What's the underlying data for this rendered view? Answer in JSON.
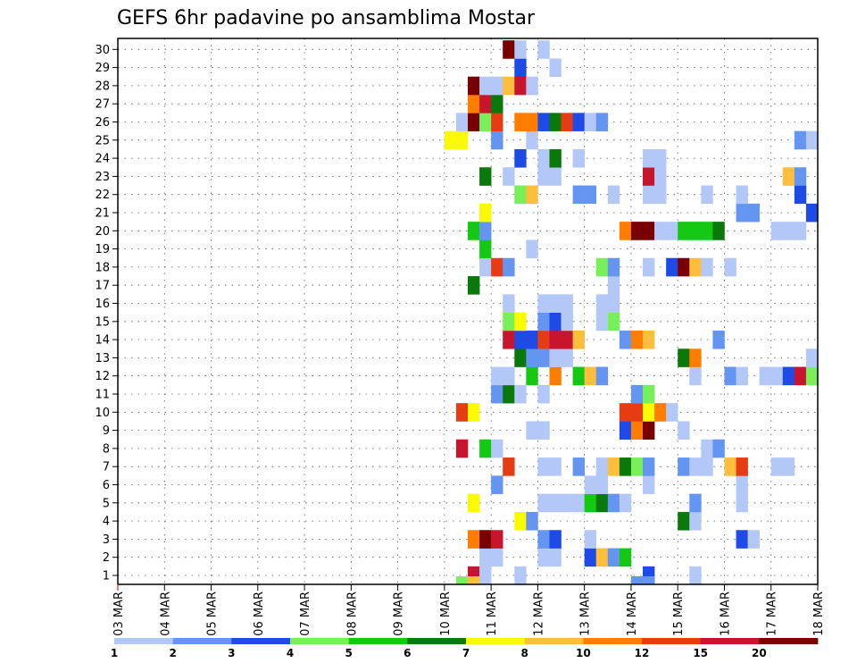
{
  "chart_data": {
    "type": "heatmap",
    "title": "GEFS 6hr padavine po ansamblima Mostar",
    "y_ticks": [
      "1",
      "2",
      "3",
      "4",
      "5",
      "6",
      "7",
      "8",
      "9",
      "10",
      "11",
      "12",
      "13",
      "14",
      "15",
      "16",
      "17",
      "18",
      "19",
      "20",
      "21",
      "22",
      "23",
      "24",
      "25",
      "26",
      "27",
      "28",
      "29",
      "30"
    ],
    "x_ticks": [
      "03 MAR",
      "04 MAR",
      "05 MAR",
      "06 MAR",
      "07 MAR",
      "08 MAR",
      "09 MAR",
      "10 MAR",
      "11 MAR",
      "12 MAR",
      "13 MAR",
      "14 MAR",
      "15 MAR",
      "16 MAR",
      "17 MAR",
      "18 MAR"
    ],
    "xlim": [
      0,
      60
    ],
    "ylim": [
      0,
      30
    ],
    "grid": "dotted",
    "colorbar": {
      "levels": [
        "1",
        "2",
        "3",
        "4",
        "5",
        "6",
        "7",
        "8",
        "10",
        "12",
        "15",
        "20"
      ],
      "colors": [
        "#b4c8f8",
        "#6495f0",
        "#1e4be6",
        "#78f05a",
        "#14c814",
        "#0a780a",
        "#fafa00",
        "#ffbe3c",
        "#ff7d00",
        "#e63c14",
        "#c8142d",
        "#780000"
      ]
    },
    "cells": [
      {
        "m": 1,
        "t": 31,
        "c": 10
      },
      {
        "m": 1,
        "t": 32,
        "c": 0
      },
      {
        "m": 1,
        "t": 35,
        "c": 0
      },
      {
        "m": 1,
        "t": 46,
        "c": 2
      },
      {
        "m": 1,
        "t": 50,
        "c": 0
      },
      {
        "m": 2,
        "t": 32,
        "c": 0
      },
      {
        "m": 2,
        "t": 33,
        "c": 0
      },
      {
        "m": 2,
        "t": 37,
        "c": 0
      },
      {
        "m": 2,
        "t": 38,
        "c": 0
      },
      {
        "m": 2,
        "t": 41,
        "c": 2
      },
      {
        "m": 2,
        "t": 42,
        "c": 7
      },
      {
        "m": 2,
        "t": 43,
        "c": 1
      },
      {
        "m": 2,
        "t": 44,
        "c": 4
      },
      {
        "m": 3,
        "t": 31,
        "c": 8
      },
      {
        "m": 3,
        "t": 32,
        "c": 11
      },
      {
        "m": 3,
        "t": 33,
        "c": 10
      },
      {
        "m": 3,
        "t": 37,
        "c": 1
      },
      {
        "m": 3,
        "t": 38,
        "c": 2
      },
      {
        "m": 3,
        "t": 41,
        "c": 0
      },
      {
        "m": 3,
        "t": 54,
        "c": 2
      },
      {
        "m": 3,
        "t": 55,
        "c": 0
      },
      {
        "m": 4,
        "t": 35,
        "c": 6
      },
      {
        "m": 4,
        "t": 36,
        "c": 1
      },
      {
        "m": 4,
        "t": 49,
        "c": 5
      },
      {
        "m": 4,
        "t": 50,
        "c": 0
      },
      {
        "m": 5,
        "t": 31,
        "c": 6
      },
      {
        "m": 5,
        "t": 37,
        "c": 0
      },
      {
        "m": 5,
        "t": 38,
        "c": 0
      },
      {
        "m": 5,
        "t": 39,
        "c": 0
      },
      {
        "m": 5,
        "t": 40,
        "c": 0
      },
      {
        "m": 5,
        "t": 41,
        "c": 4
      },
      {
        "m": 5,
        "t": 42,
        "c": 5
      },
      {
        "m": 5,
        "t": 43,
        "c": 1
      },
      {
        "m": 5,
        "t": 44,
        "c": 0
      },
      {
        "m": 5,
        "t": 50,
        "c": 1
      },
      {
        "m": 5,
        "t": 54,
        "c": 0
      },
      {
        "m": 6,
        "t": 33,
        "c": 1
      },
      {
        "m": 6,
        "t": 41,
        "c": 0
      },
      {
        "m": 6,
        "t": 42,
        "c": 0
      },
      {
        "m": 6,
        "t": 46,
        "c": 0
      },
      {
        "m": 6,
        "t": 54,
        "c": 0
      },
      {
        "m": 7,
        "t": 34,
        "c": 9
      },
      {
        "m": 7,
        "t": 37,
        "c": 0
      },
      {
        "m": 7,
        "t": 38,
        "c": 0
      },
      {
        "m": 7,
        "t": 40,
        "c": 1
      },
      {
        "m": 7,
        "t": 42,
        "c": 0
      },
      {
        "m": 7,
        "t": 43,
        "c": 7
      },
      {
        "m": 7,
        "t": 44,
        "c": 5
      },
      {
        "m": 7,
        "t": 45,
        "c": 3
      },
      {
        "m": 7,
        "t": 46,
        "c": 1
      },
      {
        "m": 7,
        "t": 49,
        "c": 1
      },
      {
        "m": 7,
        "t": 50,
        "c": 0
      },
      {
        "m": 7,
        "t": 51,
        "c": 0
      },
      {
        "m": 7,
        "t": 53,
        "c": 7
      },
      {
        "m": 7,
        "t": 54,
        "c": 9
      },
      {
        "m": 7,
        "t": 57,
        "c": 0
      },
      {
        "m": 7,
        "t": 58,
        "c": 0
      },
      {
        "m": 8,
        "t": 30,
        "c": 10
      },
      {
        "m": 8,
        "t": 32,
        "c": 4
      },
      {
        "m": 8,
        "t": 33,
        "c": 0
      },
      {
        "m": 8,
        "t": 51,
        "c": 0
      },
      {
        "m": 8,
        "t": 52,
        "c": 1
      },
      {
        "m": 9,
        "t": 36,
        "c": 0
      },
      {
        "m": 9,
        "t": 37,
        "c": 0
      },
      {
        "m": 9,
        "t": 44,
        "c": 2
      },
      {
        "m": 9,
        "t": 45,
        "c": 8
      },
      {
        "m": 9,
        "t": 46,
        "c": 11
      },
      {
        "m": 9,
        "t": 49,
        "c": 0
      },
      {
        "m": 10,
        "t": 30,
        "c": 9
      },
      {
        "m": 10,
        "t": 31,
        "c": 6
      },
      {
        "m": 10,
        "t": 44,
        "c": 9
      },
      {
        "m": 10,
        "t": 45,
        "c": 9
      },
      {
        "m": 10,
        "t": 46,
        "c": 6
      },
      {
        "m": 10,
        "t": 47,
        "c": 8
      },
      {
        "m": 10,
        "t": 48,
        "c": 0
      },
      {
        "m": 11,
        "t": 33,
        "c": 1
      },
      {
        "m": 11,
        "t": 34,
        "c": 5
      },
      {
        "m": 11,
        "t": 35,
        "c": 0
      },
      {
        "m": 11,
        "t": 37,
        "c": 0
      },
      {
        "m": 11,
        "t": 45,
        "c": 1
      },
      {
        "m": 11,
        "t": 46,
        "c": 3
      },
      {
        "m": 12,
        "t": 33,
        "c": 0
      },
      {
        "m": 12,
        "t": 34,
        "c": 0
      },
      {
        "m": 12,
        "t": 36,
        "c": 4
      },
      {
        "m": 12,
        "t": 38,
        "c": 8
      },
      {
        "m": 12,
        "t": 40,
        "c": 4
      },
      {
        "m": 12,
        "t": 41,
        "c": 7
      },
      {
        "m": 12,
        "t": 42,
        "c": 1
      },
      {
        "m": 12,
        "t": 50,
        "c": 0
      },
      {
        "m": 12,
        "t": 53,
        "c": 1
      },
      {
        "m": 12,
        "t": 54,
        "c": 0
      },
      {
        "m": 12,
        "t": 56,
        "c": 0
      },
      {
        "m": 12,
        "t": 57,
        "c": 0
      },
      {
        "m": 12,
        "t": 58,
        "c": 2
      },
      {
        "m": 12,
        "t": 59,
        "c": 10
      },
      {
        "m": 12,
        "t": 60,
        "c": 3
      },
      {
        "m": 13,
        "t": 35,
        "c": 5
      },
      {
        "m": 13,
        "t": 36,
        "c": 1
      },
      {
        "m": 13,
        "t": 37,
        "c": 1
      },
      {
        "m": 13,
        "t": 38,
        "c": 0
      },
      {
        "m": 13,
        "t": 39,
        "c": 0
      },
      {
        "m": 13,
        "t": 49,
        "c": 5
      },
      {
        "m": 13,
        "t": 50,
        "c": 8
      },
      {
        "m": 13,
        "t": 60,
        "c": 0
      },
      {
        "m": 14,
        "t": 34,
        "c": 10
      },
      {
        "m": 14,
        "t": 35,
        "c": 2
      },
      {
        "m": 14,
        "t": 36,
        "c": 2
      },
      {
        "m": 14,
        "t": 37,
        "c": 9
      },
      {
        "m": 14,
        "t": 38,
        "c": 10
      },
      {
        "m": 14,
        "t": 39,
        "c": 10
      },
      {
        "m": 14,
        "t": 40,
        "c": 7
      },
      {
        "m": 14,
        "t": 44,
        "c": 1
      },
      {
        "m": 14,
        "t": 45,
        "c": 8
      },
      {
        "m": 14,
        "t": 46,
        "c": 7
      },
      {
        "m": 14,
        "t": 52,
        "c": 1
      },
      {
        "m": 15,
        "t": 34,
        "c": 3
      },
      {
        "m": 15,
        "t": 35,
        "c": 6
      },
      {
        "m": 15,
        "t": 37,
        "c": 1
      },
      {
        "m": 15,
        "t": 38,
        "c": 2
      },
      {
        "m": 15,
        "t": 39,
        "c": 0
      },
      {
        "m": 15,
        "t": 42,
        "c": 0
      },
      {
        "m": 15,
        "t": 43,
        "c": 3
      },
      {
        "m": 16,
        "t": 34,
        "c": 0
      },
      {
        "m": 16,
        "t": 37,
        "c": 0
      },
      {
        "m": 16,
        "t": 38,
        "c": 0
      },
      {
        "m": 16,
        "t": 39,
        "c": 0
      },
      {
        "m": 16,
        "t": 42,
        "c": 0
      },
      {
        "m": 16,
        "t": 43,
        "c": 0
      },
      {
        "m": 17,
        "t": 31,
        "c": 5
      },
      {
        "m": 17,
        "t": 43,
        "c": 0
      },
      {
        "m": 18,
        "t": 32,
        "c": 0
      },
      {
        "m": 18,
        "t": 33,
        "c": 9
      },
      {
        "m": 18,
        "t": 34,
        "c": 1
      },
      {
        "m": 18,
        "t": 42,
        "c": 3
      },
      {
        "m": 18,
        "t": 43,
        "c": 1
      },
      {
        "m": 18,
        "t": 46,
        "c": 0
      },
      {
        "m": 18,
        "t": 48,
        "c": 2
      },
      {
        "m": 18,
        "t": 49,
        "c": 11
      },
      {
        "m": 18,
        "t": 50,
        "c": 7
      },
      {
        "m": 18,
        "t": 51,
        "c": 0
      },
      {
        "m": 18,
        "t": 53,
        "c": 0
      },
      {
        "m": 19,
        "t": 32,
        "c": 4
      },
      {
        "m": 19,
        "t": 36,
        "c": 0
      },
      {
        "m": 20,
        "t": 31,
        "c": 4
      },
      {
        "m": 20,
        "t": 32,
        "c": 1
      },
      {
        "m": 20,
        "t": 44,
        "c": 8
      },
      {
        "m": 20,
        "t": 45,
        "c": 11
      },
      {
        "m": 20,
        "t": 46,
        "c": 11
      },
      {
        "m": 20,
        "t": 47,
        "c": 0
      },
      {
        "m": 20,
        "t": 48,
        "c": 0
      },
      {
        "m": 20,
        "t": 49,
        "c": 4
      },
      {
        "m": 20,
        "t": 50,
        "c": 4
      },
      {
        "m": 20,
        "t": 51,
        "c": 4
      },
      {
        "m": 20,
        "t": 52,
        "c": 5
      },
      {
        "m": 20,
        "t": 57,
        "c": 0
      },
      {
        "m": 20,
        "t": 58,
        "c": 0
      },
      {
        "m": 20,
        "t": 59,
        "c": 0
      },
      {
        "m": 21,
        "t": 32,
        "c": 6
      },
      {
        "m": 21,
        "t": 54,
        "c": 1
      },
      {
        "m": 21,
        "t": 55,
        "c": 1
      },
      {
        "m": 21,
        "t": 60,
        "c": 2
      },
      {
        "m": 22,
        "t": 35,
        "c": 3
      },
      {
        "m": 22,
        "t": 36,
        "c": 7
      },
      {
        "m": 22,
        "t": 40,
        "c": 1
      },
      {
        "m": 22,
        "t": 41,
        "c": 1
      },
      {
        "m": 22,
        "t": 43,
        "c": 0
      },
      {
        "m": 22,
        "t": 46,
        "c": 0
      },
      {
        "m": 22,
        "t": 47,
        "c": 0
      },
      {
        "m": 22,
        "t": 51,
        "c": 0
      },
      {
        "m": 22,
        "t": 54,
        "c": 0
      },
      {
        "m": 22,
        "t": 59,
        "c": 2
      },
      {
        "m": 23,
        "t": 32,
        "c": 5
      },
      {
        "m": 23,
        "t": 34,
        "c": 0
      },
      {
        "m": 23,
        "t": 37,
        "c": 0
      },
      {
        "m": 23,
        "t": 38,
        "c": 0
      },
      {
        "m": 23,
        "t": 46,
        "c": 10
      },
      {
        "m": 23,
        "t": 47,
        "c": 0
      },
      {
        "m": 23,
        "t": 58,
        "c": 7
      },
      {
        "m": 23,
        "t": 59,
        "c": 1
      },
      {
        "m": 24,
        "t": 35,
        "c": 2
      },
      {
        "m": 24,
        "t": 37,
        "c": 0
      },
      {
        "m": 24,
        "t": 38,
        "c": 5
      },
      {
        "m": 24,
        "t": 40,
        "c": 0
      },
      {
        "m": 24,
        "t": 46,
        "c": 0
      },
      {
        "m": 24,
        "t": 47,
        "c": 0
      },
      {
        "m": 25,
        "t": 29,
        "c": 6
      },
      {
        "m": 25,
        "t": 30,
        "c": 6
      },
      {
        "m": 25,
        "t": 33,
        "c": 1
      },
      {
        "m": 25,
        "t": 36,
        "c": 0
      },
      {
        "m": 25,
        "t": 59,
        "c": 1
      },
      {
        "m": 25,
        "t": 60,
        "c": 0
      },
      {
        "m": 26,
        "t": 30,
        "c": 0
      },
      {
        "m": 26,
        "t": 31,
        "c": 11
      },
      {
        "m": 26,
        "t": 32,
        "c": 3
      },
      {
        "m": 26,
        "t": 33,
        "c": 9
      },
      {
        "m": 26,
        "t": 35,
        "c": 8
      },
      {
        "m": 26,
        "t": 36,
        "c": 8
      },
      {
        "m": 26,
        "t": 37,
        "c": 2
      },
      {
        "m": 26,
        "t": 38,
        "c": 5
      },
      {
        "m": 26,
        "t": 39,
        "c": 9
      },
      {
        "m": 26,
        "t": 40,
        "c": 2
      },
      {
        "m": 26,
        "t": 41,
        "c": 0
      },
      {
        "m": 26,
        "t": 42,
        "c": 1
      },
      {
        "m": 27,
        "t": 31,
        "c": 8
      },
      {
        "m": 27,
        "t": 32,
        "c": 10
      },
      {
        "m": 27,
        "t": 33,
        "c": 5
      },
      {
        "m": 28,
        "t": 31,
        "c": 11
      },
      {
        "m": 28,
        "t": 32,
        "c": 0
      },
      {
        "m": 28,
        "t": 33,
        "c": 0
      },
      {
        "m": 28,
        "t": 34,
        "c": 7
      },
      {
        "m": 28,
        "t": 35,
        "c": 10
      },
      {
        "m": 28,
        "t": 36,
        "c": 0
      },
      {
        "m": 29,
        "t": 35,
        "c": 2
      },
      {
        "m": 29,
        "t": 38,
        "c": 0
      },
      {
        "m": 30,
        "t": 34,
        "c": 11
      },
      {
        "m": 30,
        "t": 35,
        "c": 0
      },
      {
        "m": 30,
        "t": 37,
        "c": 0
      },
      {
        "m": 0,
        "t": 30,
        "c": 3
      },
      {
        "m": 0,
        "t": 31,
        "c": 7
      },
      {
        "m": 0,
        "t": 45,
        "c": 1
      },
      {
        "m": 0,
        "t": 46,
        "c": 1
      }
    ]
  }
}
